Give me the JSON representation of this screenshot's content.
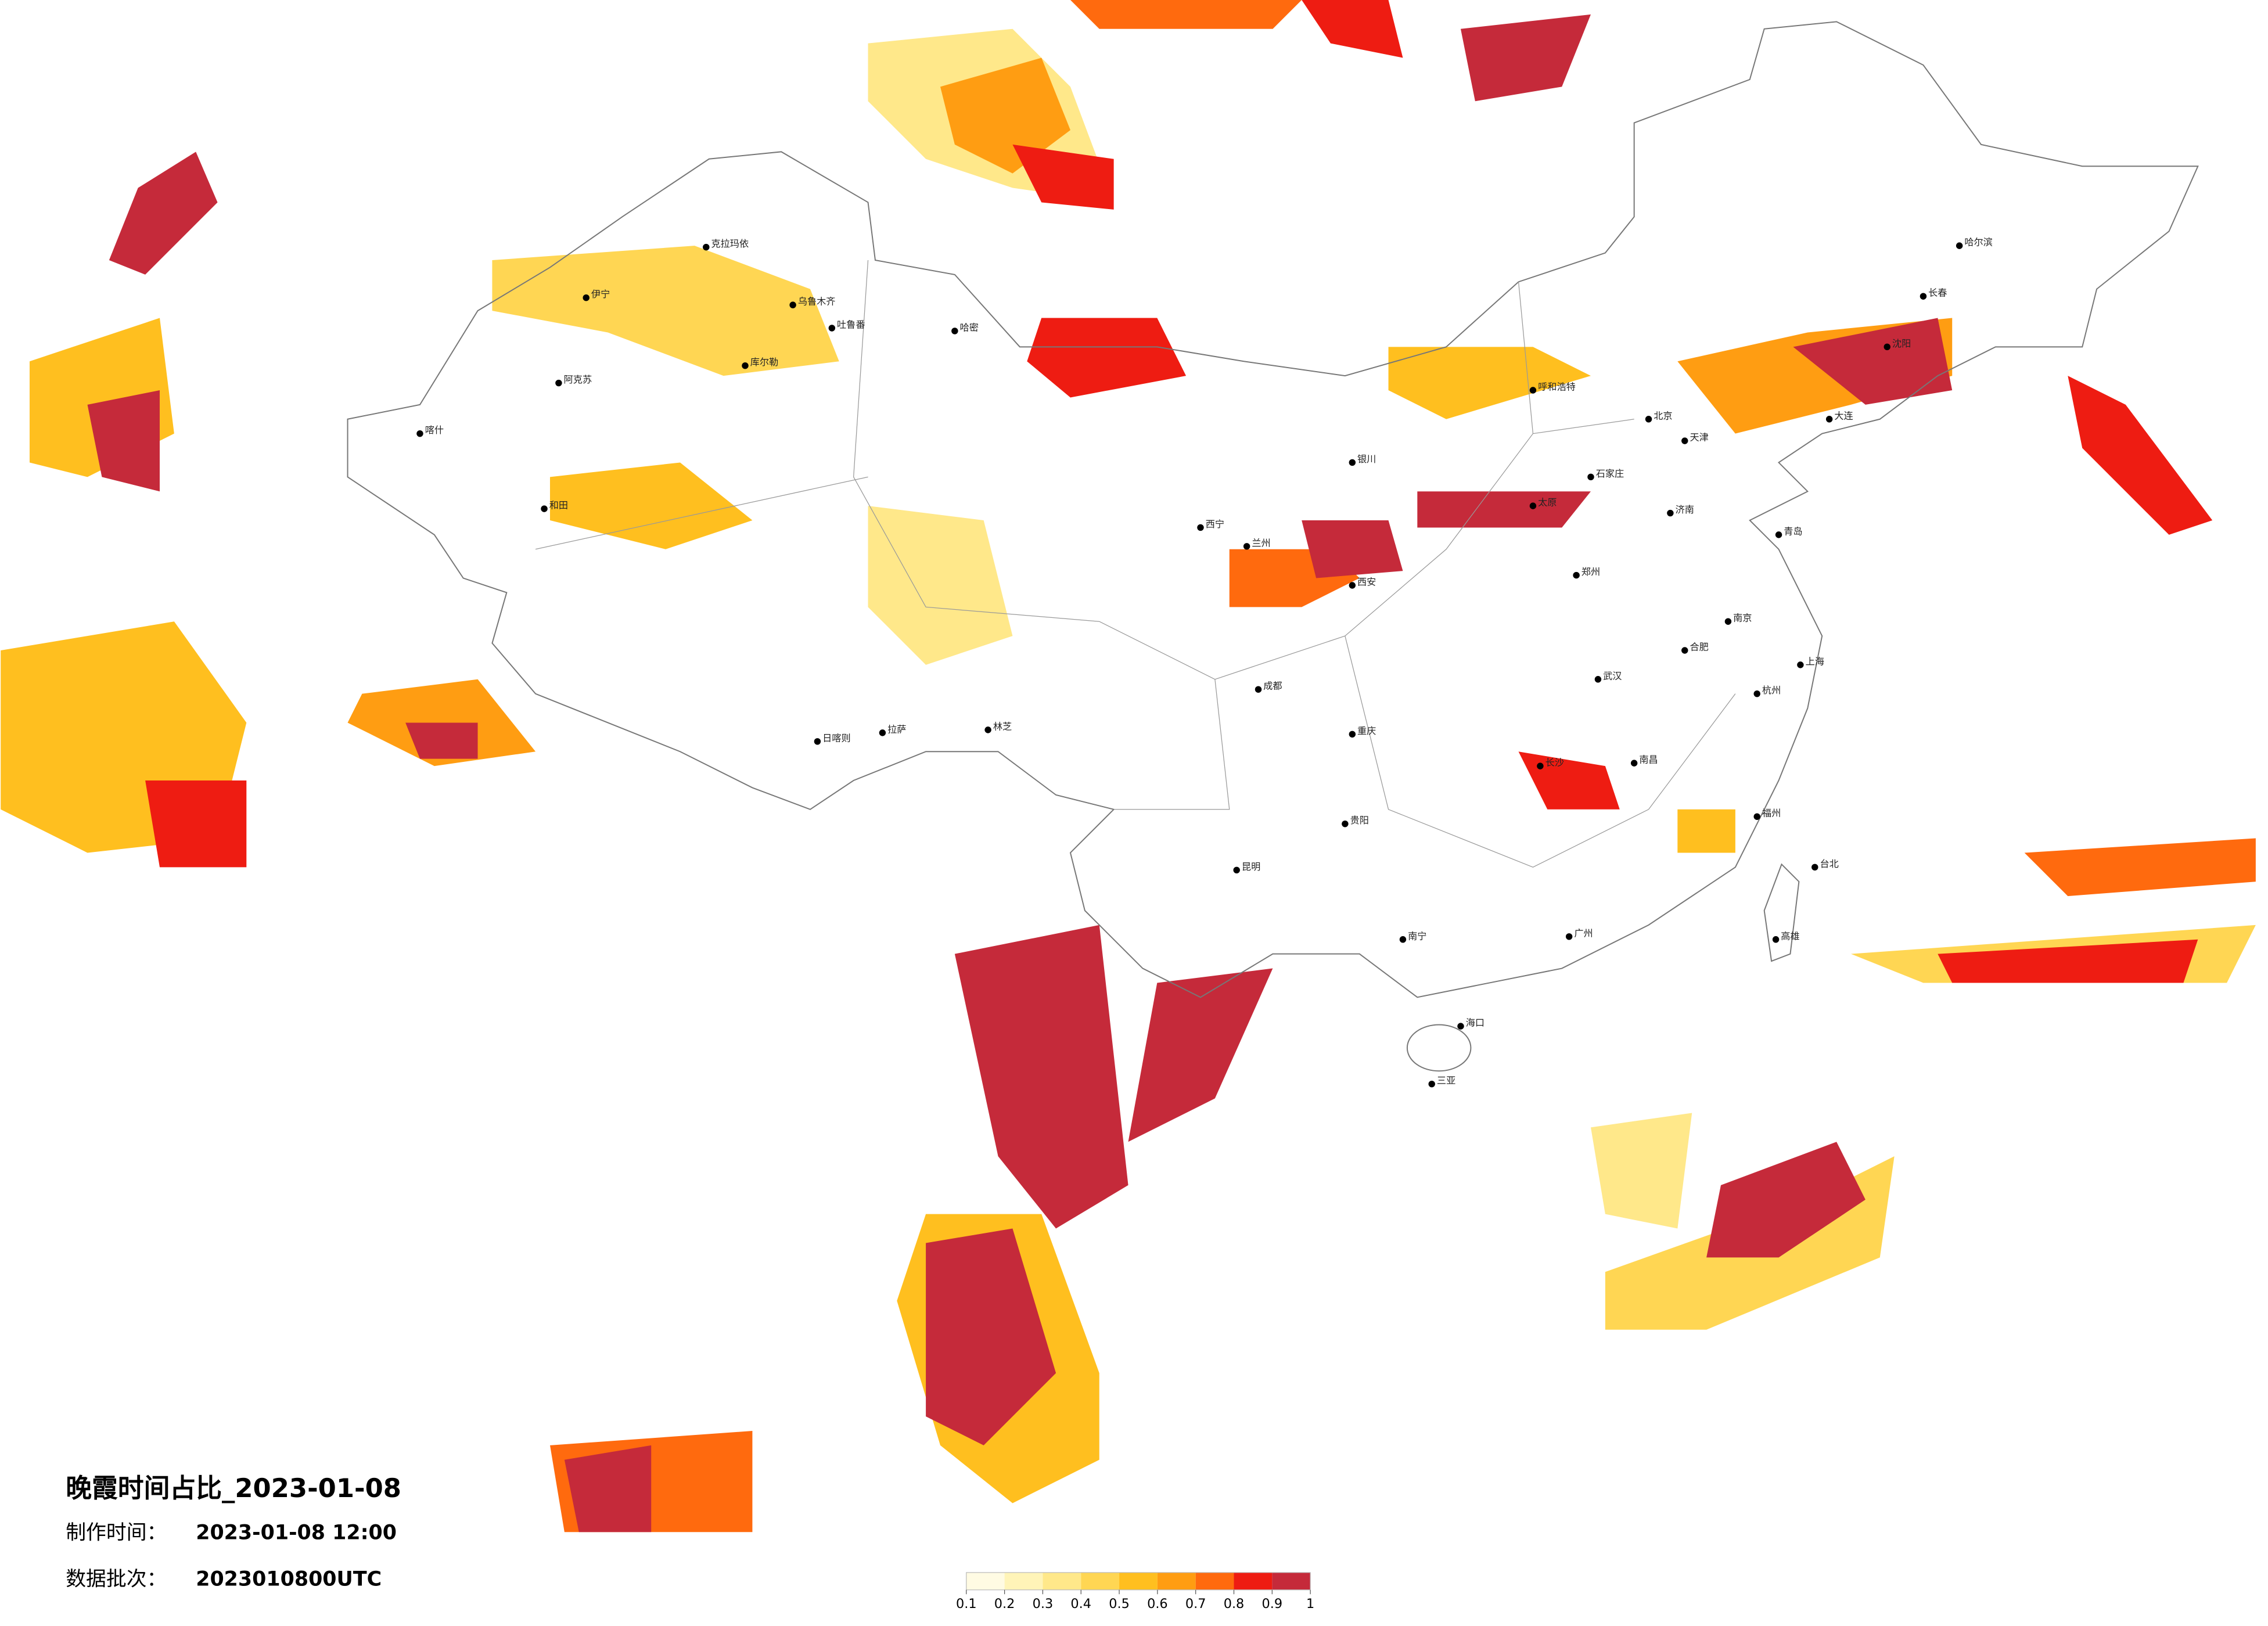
{
  "title": "晚霞时间占比_2023-01-08",
  "made_label": "制作时间：",
  "made_value": "2023-01-08 12:00",
  "batch_label": "数据批次：",
  "batch_value": "2023010800UTC",
  "colorbar": {
    "clim": [
      0.1,
      1
    ],
    "ticks": [
      0.1,
      0.2,
      0.3,
      0.4,
      0.5,
      0.6,
      0.7,
      0.8,
      0.9,
      1
    ],
    "colors": [
      "#fffbe3",
      "#fff4b8",
      "#ffe88a",
      "#ffd653",
      "#ffbf1f",
      "#ff9d12",
      "#ff6a0e",
      "#ee1c12",
      "#c52a3a"
    ]
  },
  "cities": [
    "乌鲁木齐",
    "克拉玛依",
    "伊宁",
    "阿克苏",
    "喀什",
    "和田",
    "库尔勒",
    "哈密",
    "吐鲁番",
    "拉萨",
    "日喀则",
    "林芝",
    "西宁",
    "兰州",
    "银川",
    "呼和浩特",
    "北京",
    "天津",
    "石家庄",
    "太原",
    "济南",
    "郑州",
    "西安",
    "成都",
    "重庆",
    "贵阳",
    "昆明",
    "南宁",
    "长沙",
    "武汉",
    "南昌",
    "合肥",
    "南京",
    "杭州",
    "上海",
    "福州",
    "广州",
    "海口",
    "三亚",
    "台北",
    "高雄",
    "长春",
    "哈尔滨",
    "沈阳",
    "大连",
    "青岛"
  ]
}
